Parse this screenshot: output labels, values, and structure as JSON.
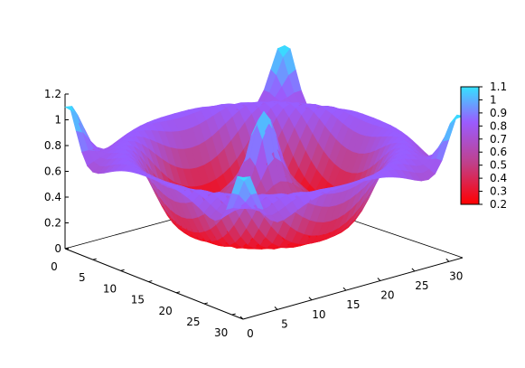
{
  "chart_data": {
    "type": "surface3d",
    "x_range": [
      0,
      32
    ],
    "y_range": [
      0,
      32
    ],
    "z_range": [
      0,
      1.2
    ],
    "z_ticks": [
      "0",
      "0.2",
      "0.4",
      "0.6",
      "0.8",
      "1",
      "1.2"
    ],
    "x_ticks": [
      "0",
      "5",
      "10",
      "15",
      "20",
      "25",
      "30"
    ],
    "y_ticks": [
      "0",
      "5",
      "10",
      "15",
      "20",
      "25",
      "30"
    ],
    "colorbar": {
      "range": [
        0.2,
        1.1
      ],
      "ticks": [
        "1.1",
        "1",
        "0.9",
        "0.8",
        "0.7",
        "0.6",
        "0.5",
        "0.4",
        "0.3",
        "0.2"
      ],
      "colors": [
        "#ff0000",
        "#c0408a",
        "#9a5cff",
        "#35e2ff"
      ]
    },
    "features": {
      "center_peak": 1.1,
      "corner_peaks": 1.0,
      "rim_bumps": 0.95,
      "saddle_level": 0.6,
      "min_level": 0.2
    },
    "grid": false,
    "legend": "colorbar-right"
  }
}
